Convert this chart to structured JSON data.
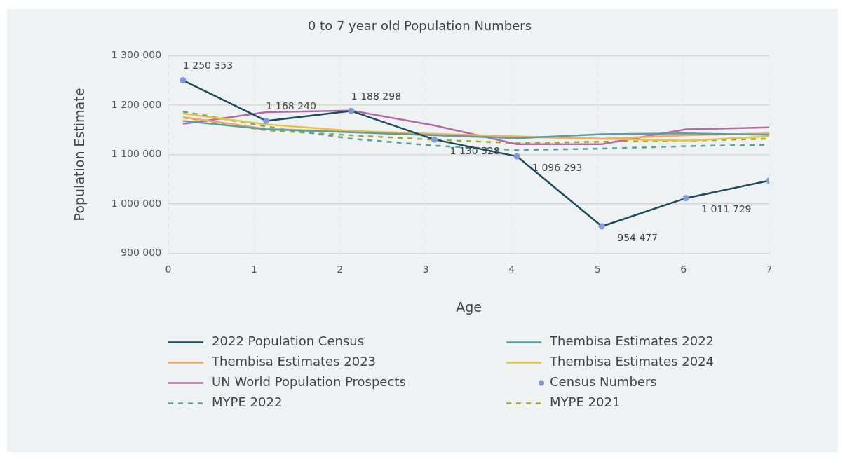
{
  "chart_data": {
    "type": "line",
    "title": "0 to 7 year old Population Numbers",
    "xlabel": "Age",
    "ylabel": "Population Estimate",
    "x": [
      0.17,
      1.14,
      2.13,
      3.1,
      4.06,
      5.05,
      6.03,
      7
    ],
    "xlim": [
      0,
      7
    ],
    "xticks": [
      0,
      1,
      2,
      3,
      4,
      5,
      6,
      7
    ],
    "ylim": [
      900000,
      1300000
    ],
    "yticks": [
      {
        "value": 900000,
        "label": "900 000"
      },
      {
        "value": 1000000,
        "label": "1 000 000"
      },
      {
        "value": 1100000,
        "label": "1 100 000"
      },
      {
        "value": 1200000,
        "label": "1 200 000"
      },
      {
        "value": 1300000,
        "label": "1 300 000"
      }
    ],
    "grid": true,
    "legend": "bottom",
    "marker": "none",
    "series": [
      {
        "name": "2022 Population Census",
        "color": "#1d4a5c",
        "values": [
          1250353,
          1168240,
          1188298,
          1130328,
          1096293,
          954477,
          1011729,
          1047000
        ]
      },
      {
        "name": "Thembisa Estimates 2022",
        "color": "#5b9ea0",
        "values": [
          1168000,
          1151000,
          1145000,
          1139000,
          1133000,
          1141000,
          1143000,
          1140000
        ]
      },
      {
        "name": "Thembisa Estimates 2023",
        "color": "#f5a86a",
        "values": [
          1176000,
          1152000,
          1146000,
          1141000,
          1136000,
          1132000,
          1139000,
          1143000
        ]
      },
      {
        "name": "Thembisa Estimates 2024",
        "color": "#e8c53a",
        "values": [
          1183000,
          1161000,
          1148000,
          1142000,
          1137000,
          1132000,
          1128000,
          1137000
        ]
      },
      {
        "name": "UN World Population Prospects",
        "color": "#b56aa8",
        "values": [
          1162000,
          1186000,
          1189000,
          1159000,
          1121000,
          1121000,
          1151000,
          1155000
        ]
      },
      {
        "name": "Census Numbers",
        "type": "scatter",
        "marker": "circle",
        "color": "#7f9bd0",
        "values": [
          1250353,
          1168240,
          1188298,
          1130328,
          1096293,
          954477,
          1011729,
          1047000
        ],
        "value_labels": [
          "1 250 353",
          "1 168 240",
          "1 188 298",
          "1 130 328",
          "1 096 293",
          "954 477",
          "1 011 729",
          null
        ]
      },
      {
        "name": "MYPE 2022",
        "color": "#5b9ea0",
        "line_style": "dashed",
        "values": [
          1187000,
          1157000,
          1132000,
          1118000,
          1109000,
          1112000,
          1117000,
          1120000
        ]
      },
      {
        "name": "MYPE 2021",
        "color": "#a3a827",
        "line_style": "dashed",
        "values": [
          1175000,
          1149000,
          1139000,
          1130000,
          1123000,
          1126000,
          1128000,
          1132000
        ]
      }
    ]
  }
}
